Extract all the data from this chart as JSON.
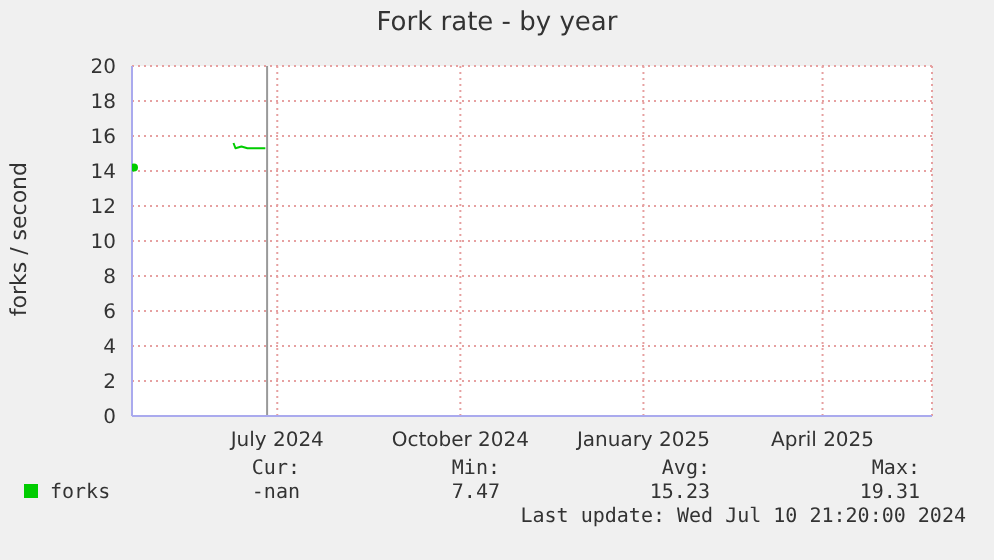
{
  "chart_data": {
    "type": "line",
    "title": "Fork rate - by year",
    "ylabel": "forks / second",
    "series": [
      {
        "name": "forks",
        "color": "#00cc00",
        "x": [
          "2024-05-05",
          "2024-05-06",
          "2024-06-24",
          "2024-06-25",
          "2024-06-28",
          "2024-07-01",
          "2024-07-04",
          "2024-07-07",
          "2024-07-10"
        ],
        "values": [
          14.2,
          null,
          15.6,
          15.3,
          15.4,
          15.3,
          15.3,
          15.3,
          15.3
        ]
      }
    ],
    "xlim": [
      "2024-05-04",
      "2025-06-10"
    ],
    "xticks": [
      {
        "value": "2024-07-16",
        "label": "July 2024"
      },
      {
        "value": "2024-10-16",
        "label": "October 2024"
      },
      {
        "value": "2025-01-16",
        "label": "January 2025"
      },
      {
        "value": "2025-04-16",
        "label": "April 2025"
      }
    ],
    "ylim": [
      0,
      20
    ],
    "yticks": [
      0,
      2,
      4,
      6,
      8,
      10,
      12,
      14,
      16,
      18,
      20
    ],
    "grid": true,
    "legend": "bottom",
    "marker": "none",
    "line_style": "solid",
    "ref_lines": [
      {
        "axis": "x",
        "value": "2024-07-10T21:20",
        "color": "#999999"
      }
    ],
    "annotations": [
      "Cur:",
      "Min:",
      "Avg:",
      "Max:",
      "-nan",
      "7.47",
      "15.23",
      "19.31",
      "Last update: Wed Jul 10 21:20:00 2024"
    ]
  }
}
